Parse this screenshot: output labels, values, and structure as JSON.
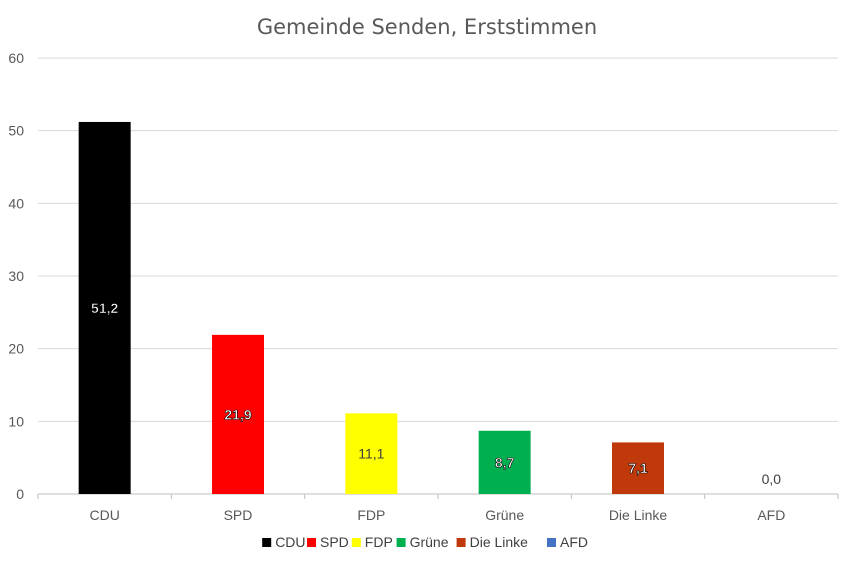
{
  "chart_data": {
    "type": "bar",
    "title": "Gemeinde Senden, Erststimmen",
    "categories": [
      "CDU",
      "SPD",
      "FDP",
      "Grüne",
      "Die Linke",
      "AFD"
    ],
    "values": [
      51.2,
      21.9,
      11.1,
      8.7,
      7.1,
      0.0
    ],
    "data_labels": [
      "51,2",
      "21,9",
      "11,1",
      "8,7",
      "7,1",
      "0,0"
    ],
    "colors": [
      "#000000",
      "#ff0000",
      "#ffff00",
      "#00b050",
      "#c0390a",
      "#4472c4"
    ],
    "ylim": [
      0,
      60
    ],
    "yticks": [
      0,
      10,
      20,
      30,
      40,
      50,
      60
    ],
    "grid": true,
    "legend": {
      "position": "bottom",
      "entries": [
        "CDU",
        "SPD",
        "FDP",
        "Grüne",
        "Die Linke",
        "AFD"
      ]
    },
    "xlabel": "",
    "ylabel": ""
  }
}
